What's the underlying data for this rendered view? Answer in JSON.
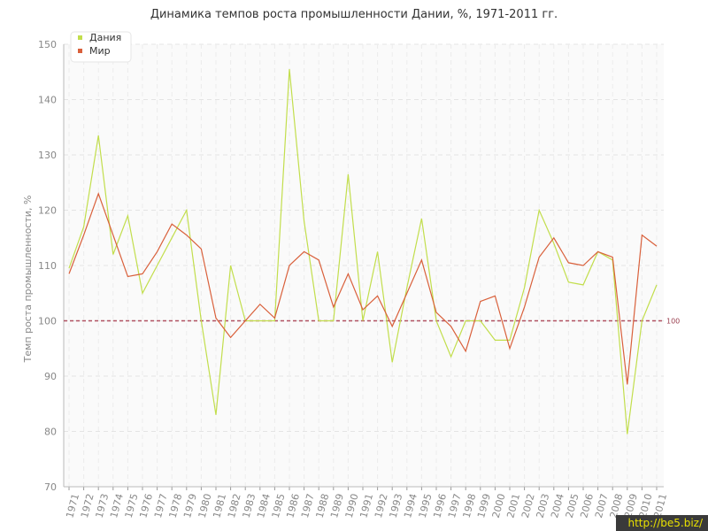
{
  "chart_data": {
    "type": "line",
    "title": "Динамика темпов роста промышленности Дании, %, 1971-2011 гг.",
    "ylabel": "Темп роста промышленности, %",
    "xlabel": "",
    "ylim": [
      70,
      150
    ],
    "yticks": [
      70,
      80,
      90,
      100,
      110,
      120,
      130,
      140,
      150
    ],
    "categories": [
      "1971",
      "1972",
      "1973",
      "1974",
      "1975",
      "1976",
      "1977",
      "1978",
      "1979",
      "1980",
      "1981",
      "1982",
      "1983",
      "1984",
      "1985",
      "1986",
      "1987",
      "1988",
      "1989",
      "1990",
      "1991",
      "1992",
      "1993",
      "1994",
      "1995",
      "1996",
      "1997",
      "1998",
      "1999",
      "2000",
      "2001",
      "2002",
      "2003",
      "2004",
      "2005",
      "2006",
      "2007",
      "2008",
      "2009",
      "2010",
      "2011"
    ],
    "series": [
      {
        "name": "Дания",
        "color": "#c2de4c",
        "values": [
          109.5,
          117,
          133.5,
          112,
          119,
          105,
          110,
          115,
          120,
          100,
          83,
          110,
          100,
          100,
          100,
          145.5,
          118,
          100,
          100,
          126.5,
          100,
          112.5,
          92.5,
          106,
          118.5,
          100,
          93.5,
          100,
          100,
          96.5,
          96.5,
          106,
          120,
          114,
          107,
          106.5,
          112.5,
          111,
          79.5,
          100,
          106.5
        ]
      },
      {
        "name": "Мир",
        "color": "#d9603b",
        "values": [
          108.5,
          115.5,
          123,
          115.5,
          108,
          108.5,
          112.5,
          117.5,
          115.5,
          113,
          100.5,
          97,
          100,
          103,
          100.5,
          110,
          112.5,
          111,
          102.5,
          108.5,
          102,
          104.5,
          99,
          105,
          111,
          101.5,
          99,
          94.5,
          103.5,
          104.5,
          95,
          102.5,
          111.5,
          115,
          110.5,
          110,
          112.5,
          111.5,
          88.5,
          115.5,
          113.5
        ]
      }
    ],
    "reference_line": {
      "value": 100,
      "label": "100",
      "color": "#b05060"
    },
    "grid": true,
    "legend": "top-left"
  },
  "watermark": "http://be5.biz/"
}
